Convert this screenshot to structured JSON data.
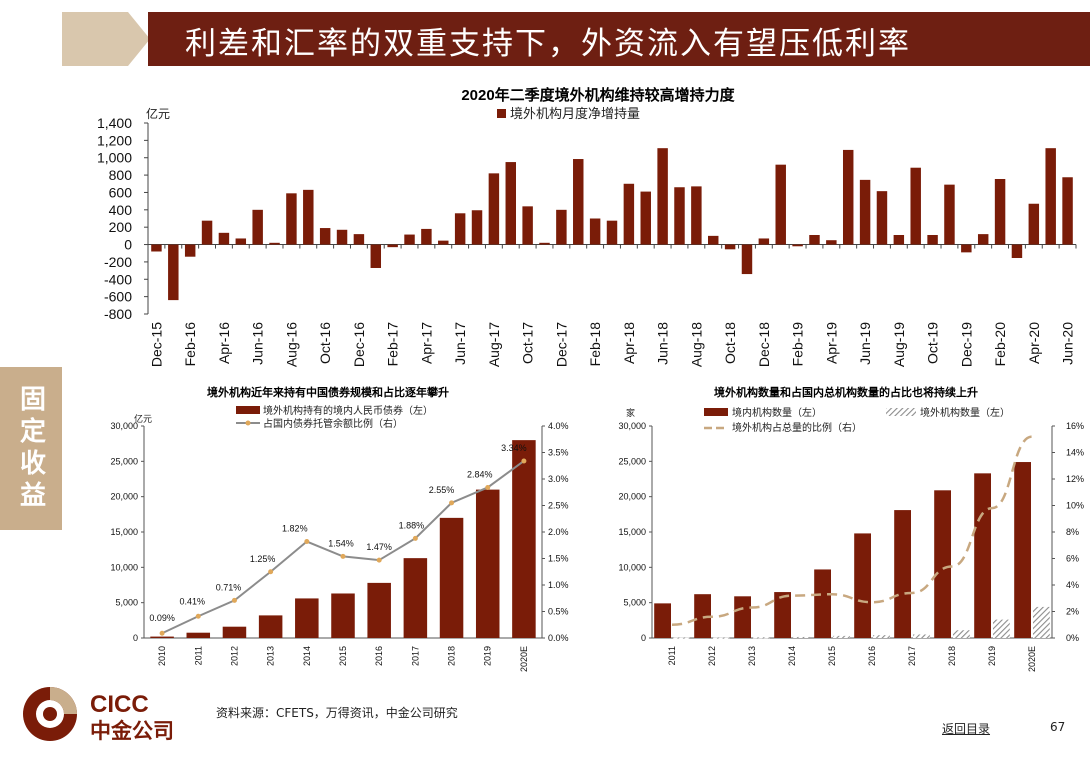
{
  "header": {
    "title": "利差和汇率的双重支持下，外资流入有望压低利率"
  },
  "side_tab": {
    "label": "固定收益"
  },
  "footer": {
    "source": "资料来源：CFETS，万得资讯，中金公司研究",
    "back_link": "返回目录",
    "page_number": "67"
  },
  "logo": {
    "en": "CICC",
    "zh": "中金公司"
  },
  "colors": {
    "bar": "#7a1c08",
    "title_bar": "#6e1f12",
    "side_tab": "#c9ae8c",
    "line_dash": "#c8a880",
    "line_gray": "#8c8c8c",
    "marker": "#e0a85a"
  },
  "chart_data": [
    {
      "type": "bar",
      "title": "2020年二季度境外机构维持较高增持力度",
      "ylabel": "亿元",
      "ylim": [
        -800,
        1400
      ],
      "yticks": [
        -800,
        -600,
        -400,
        -200,
        0,
        200,
        400,
        600,
        800,
        1000,
        1200,
        1400
      ],
      "ytick_labels": [
        "-800",
        "-600",
        "-400",
        "-200",
        "0",
        "200",
        "400",
        "600",
        "800",
        "1,000",
        "1,200",
        "1,400"
      ],
      "legend": "top-center",
      "series": [
        {
          "name": "境外机构月度净增持量",
          "values": [
            -80,
            -640,
            -140,
            275,
            135,
            70,
            400,
            20,
            590,
            630,
            190,
            170,
            120,
            -270,
            -30,
            115,
            180,
            45,
            360,
            395,
            820,
            950,
            440,
            20,
            400,
            985,
            300,
            275,
            700,
            610,
            1110,
            660,
            670,
            100,
            -55,
            -340,
            70,
            920,
            -20,
            110,
            50,
            1090,
            745,
            615,
            110,
            885,
            110,
            690,
            -90,
            120,
            755,
            -155,
            470,
            1110,
            775
          ]
        }
      ],
      "tick_labels": [
        "Dec-15",
        "Feb-16",
        "Apr-16",
        "Jun-16",
        "Aug-16",
        "Oct-16",
        "Dec-16",
        "Feb-17",
        "Apr-17",
        "Jun-17",
        "Aug-17",
        "Oct-17",
        "Dec-17",
        "Feb-18",
        "Apr-18",
        "Jun-18",
        "Aug-18",
        "Oct-18",
        "Dec-18",
        "Feb-19",
        "Apr-19",
        "Jun-19",
        "Aug-19",
        "Oct-19",
        "Dec-19",
        "Feb-20",
        "Apr-20",
        "Jun-20"
      ]
    },
    {
      "type": "bar",
      "title": "境外机构近年来持有中国债券规模和占比逐年攀升",
      "ylabel": "亿元",
      "categories": [
        "2010",
        "2011",
        "2012",
        "2013",
        "2014",
        "2015",
        "2016",
        "2017",
        "2018",
        "2019",
        "2020E"
      ],
      "ylim": [
        0,
        30000
      ],
      "yticks": [
        0,
        5000,
        10000,
        15000,
        20000,
        25000,
        30000
      ],
      "ytick_labels": [
        "0",
        "5,000",
        "10,000",
        "15,000",
        "20,000",
        "25,000",
        "30,000"
      ],
      "y2lim": [
        0,
        4
      ],
      "y2ticks": [
        0,
        0.5,
        1,
        1.5,
        2,
        2.5,
        3,
        3.5,
        4
      ],
      "y2tick_labels": [
        "0.0%",
        "0.5%",
        "1.0%",
        "1.5%",
        "2.0%",
        "2.5%",
        "3.0%",
        "3.5%",
        "4.0%"
      ],
      "legend": "top",
      "series": [
        {
          "name": "境外机构持有的境内人民币债券（左）",
          "kind": "bar",
          "values": [
            200,
            750,
            1600,
            3200,
            5600,
            6300,
            7800,
            11300,
            17000,
            21000,
            28000
          ]
        },
        {
          "name": "占国内债券托管余额比例（右）",
          "kind": "line",
          "values": [
            0.09,
            0.41,
            0.71,
            1.25,
            1.82,
            1.54,
            1.47,
            1.88,
            2.55,
            2.84,
            3.34
          ],
          "labels": [
            "0.09%",
            "0.41%",
            "0.71%",
            "1.25%",
            "1.82%",
            "1.54%",
            "1.47%",
            "1.88%",
            "2.55%",
            "2.84%",
            "3.34%"
          ]
        }
      ]
    },
    {
      "type": "bar",
      "title": "境外机构数量和占国内总机构数量的占比也将持续上升",
      "ylabel": "家",
      "categories": [
        "2011",
        "2012",
        "2013",
        "2014",
        "2015",
        "2016",
        "2017",
        "2018",
        "2019",
        "2020E"
      ],
      "ylim": [
        0,
        30000
      ],
      "yticks": [
        0,
        5000,
        10000,
        15000,
        20000,
        25000,
        30000
      ],
      "ytick_labels": [
        "0",
        "5,000",
        "10,000",
        "15,000",
        "20,000",
        "25,000",
        "30,000"
      ],
      "y2lim": [
        0,
        16
      ],
      "y2ticks": [
        0,
        2,
        4,
        6,
        8,
        10,
        12,
        14,
        16
      ],
      "y2tick_labels": [
        "0%",
        "2%",
        "4%",
        "6%",
        "8%",
        "10%",
        "12%",
        "14%",
        "16%"
      ],
      "legend": "top",
      "series": [
        {
          "name": "境内机构数量（左）",
          "kind": "bar",
          "values": [
            4900,
            6200,
            5900,
            6500,
            9700,
            14800,
            18100,
            20900,
            23300,
            24900
          ]
        },
        {
          "name": "境外机构数量（左）",
          "kind": "bar",
          "pattern": "hatched",
          "values": [
            50,
            50,
            100,
            150,
            300,
            400,
            500,
            1100,
            2600,
            4400
          ]
        },
        {
          "name": "境外机构占总量的比例（右）",
          "kind": "line",
          "style": "dashed",
          "values": [
            1.0,
            1.6,
            2.3,
            3.2,
            3.3,
            2.7,
            3.4,
            5.4,
            9.8,
            15.2
          ]
        }
      ]
    }
  ]
}
